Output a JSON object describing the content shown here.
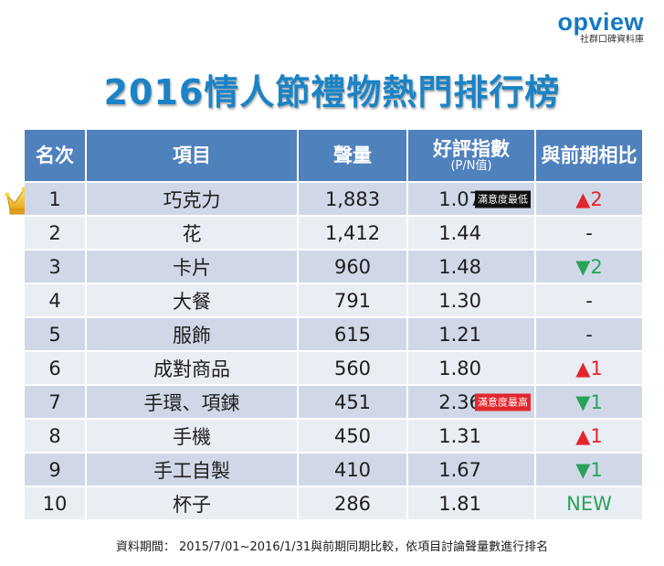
{
  "brand": {
    "logo_text": "opview",
    "tagline": "社群口碑資料庫",
    "accent_color": "#1579c4"
  },
  "title": "2016情人節禮物熱門排行榜",
  "table": {
    "headers": {
      "rank": "名次",
      "item": "項目",
      "volume": "聲量",
      "score": "好評指數",
      "score_sub": "(P/N值)",
      "change": "與前期相比"
    },
    "rows": [
      {
        "rank": "1",
        "item": "巧克力",
        "volume": "1,883",
        "score": "1.07",
        "badge": "滿意度最低",
        "badge_type": "low",
        "change": "▲2",
        "change_type": "up"
      },
      {
        "rank": "2",
        "item": "花",
        "volume": "1,412",
        "score": "1.44",
        "badge": "",
        "badge_type": "",
        "change": "-",
        "change_type": "neutral"
      },
      {
        "rank": "3",
        "item": "卡片",
        "volume": "960",
        "score": "1.48",
        "badge": "",
        "badge_type": "",
        "change": "▼2",
        "change_type": "down"
      },
      {
        "rank": "4",
        "item": "大餐",
        "volume": "791",
        "score": "1.30",
        "badge": "",
        "badge_type": "",
        "change": "-",
        "change_type": "neutral"
      },
      {
        "rank": "5",
        "item": "服飾",
        "volume": "615",
        "score": "1.21",
        "badge": "",
        "badge_type": "",
        "change": "-",
        "change_type": "neutral"
      },
      {
        "rank": "6",
        "item": "成對商品",
        "volume": "560",
        "score": "1.80",
        "badge": "",
        "badge_type": "",
        "change": "▲1",
        "change_type": "up"
      },
      {
        "rank": "7",
        "item": "手環、項鍊",
        "volume": "451",
        "score": "2.36",
        "badge": "滿意度最高",
        "badge_type": "high",
        "change": "▼1",
        "change_type": "down"
      },
      {
        "rank": "8",
        "item": "手機",
        "volume": "450",
        "score": "1.31",
        "badge": "",
        "badge_type": "",
        "change": "▲1",
        "change_type": "up"
      },
      {
        "rank": "9",
        "item": "手工自製",
        "volume": "410",
        "score": "1.67",
        "badge": "",
        "badge_type": "",
        "change": "▼1",
        "change_type": "down"
      },
      {
        "rank": "10",
        "item": "杯子",
        "volume": "286",
        "score": "1.81",
        "badge": "",
        "badge_type": "",
        "change": "NEW",
        "change_type": "new"
      }
    ]
  },
  "footnote": "資料期間： 2015/7/01~2016/1/31與前期同期比較，依項目討論聲量數進行排名",
  "colors": {
    "header_bg": "#4f81bd",
    "row_odd": "#d0d8e8",
    "row_even": "#e9edf4",
    "up": "#e3262c",
    "down": "#2aa35a",
    "title": "#1a83c6"
  }
}
